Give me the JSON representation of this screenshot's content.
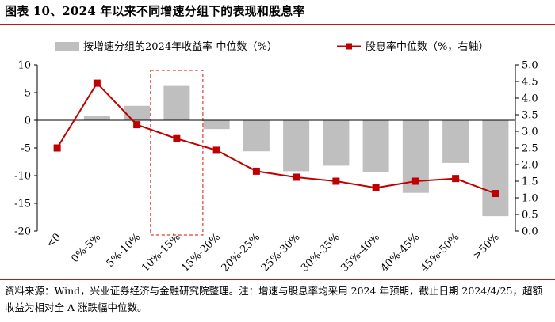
{
  "header": {
    "title": "图表 10、2024 年以来不同增速分组下的表现和股息率"
  },
  "footer": {
    "note": "资料来源：Wind，兴业证券经济与金融研究院整理。注：增速与股息率均采用 2024 年预期，截止日期 2024/4/25，超额收益为相对全 A 涨跌幅中位数。"
  },
  "chart_data": {
    "type": "bar",
    "categories": [
      "<0",
      "0%-5%",
      "5%-10%",
      "10%-15%",
      "15%-20%",
      "20%-25%",
      "25%-30%",
      "30%-35%",
      "35%-40%",
      "40%-45%",
      "45%-50%",
      ">50%"
    ],
    "series": [
      {
        "name": "按增速分组的2024年收益率-中位数（%）",
        "type": "bar",
        "axis": "left",
        "color": "#bfbfbf",
        "values": [
          0,
          0.8,
          2.6,
          6.2,
          -1.6,
          -5.6,
          -9.2,
          -8.2,
          -9.4,
          -13.1,
          -7.7,
          -17.3
        ]
      },
      {
        "name": "股息率中位数（%，右轴）",
        "type": "line",
        "axis": "right",
        "color": "#c00000",
        "values": [
          2.5,
          4.45,
          3.2,
          2.78,
          2.43,
          1.8,
          1.62,
          1.5,
          1.3,
          1.5,
          1.58,
          1.13
        ]
      }
    ],
    "ylim": [
      -20,
      10
    ],
    "y_ticks": [
      "10",
      "5",
      "0",
      "-5",
      "-10",
      "-15",
      "-20"
    ],
    "y2lim": [
      0,
      5
    ],
    "y2_ticks": [
      "5.0",
      "4.5",
      "4.0",
      "3.5",
      "3.0",
      "2.5",
      "2.0",
      "1.5",
      "1.0",
      "0.5",
      "0.0"
    ],
    "highlight_category": "10%-15%",
    "legend_position": "top",
    "grid": false
  }
}
